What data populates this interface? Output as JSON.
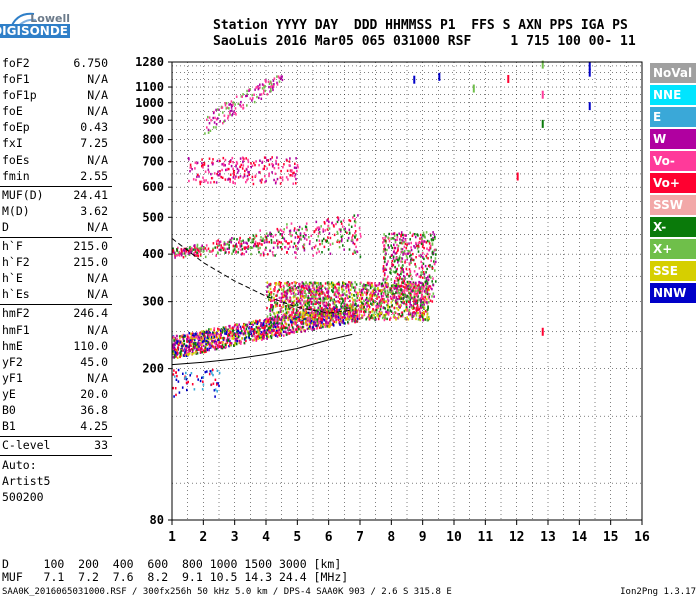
{
  "logo": {
    "line1": "Lowell",
    "line2": "DIGISONDE"
  },
  "header": {
    "line1": "Station YYYY DAY  DDD HHMMSS P1  FFS S AXN PPS IGA PS",
    "line2": "SaoLuis 2016 Mar05 065 031000 RSF     1 715 100 00- 11"
  },
  "params_group1": [
    {
      "k": "foF2",
      "v": "6.750"
    },
    {
      "k": "foF1",
      "v": "N/A"
    },
    {
      "k": "foF1p",
      "v": "N/A"
    },
    {
      "k": "foE",
      "v": "N/A"
    },
    {
      "k": "foEp",
      "v": "0.43"
    },
    {
      "k": "fxI",
      "v": "7.25"
    },
    {
      "k": "foEs",
      "v": "N/A"
    },
    {
      "k": "fmin",
      "v": "2.55"
    }
  ],
  "params_group2": [
    {
      "k": "MUF(D)",
      "v": "24.41"
    },
    {
      "k": "M(D)",
      "v": "3.62"
    },
    {
      "k": "D",
      "v": "N/A"
    }
  ],
  "params_group3": [
    {
      "k": "h`F",
      "v": "215.0"
    },
    {
      "k": "h`F2",
      "v": "215.0"
    },
    {
      "k": "h`E",
      "v": "N/A"
    },
    {
      "k": "h`Es",
      "v": "N/A"
    }
  ],
  "params_group4": [
    {
      "k": "hmF2",
      "v": "246.4"
    },
    {
      "k": "hmF1",
      "v": "N/A"
    },
    {
      "k": "hmE",
      "v": "110.0"
    },
    {
      "k": "yF2",
      "v": "45.0"
    },
    {
      "k": "yF1",
      "v": "N/A"
    },
    {
      "k": "yE",
      "v": "20.0"
    },
    {
      "k": "B0",
      "v": "36.8"
    },
    {
      "k": "B1",
      "v": "4.25"
    }
  ],
  "params_group5": [
    {
      "k": "C-level",
      "v": "33"
    }
  ],
  "autoscale": {
    "line1": "Auto:",
    "line2": "Artist5",
    "line3": "500200"
  },
  "legend": [
    {
      "label": "NoVal",
      "color": "#a0a0a0"
    },
    {
      "label": "NNE",
      "color": "#00e5ff"
    },
    {
      "label": "E",
      "color": "#3aa8d8"
    },
    {
      "label": "W",
      "color": "#b000a0"
    },
    {
      "label": "Vo-",
      "color": "#ff3a9a"
    },
    {
      "label": "Vo+",
      "color": "#ff0030"
    },
    {
      "label": "SSW",
      "color": "#f2a8a8"
    },
    {
      "label": "X-",
      "color": "#0a7a0a"
    },
    {
      "label": "X+",
      "color": "#6fbf4a"
    },
    {
      "label": "SSE",
      "color": "#d6cf00"
    },
    {
      "label": "NNW",
      "color": "#0000c8"
    }
  ],
  "chart_data": {
    "type": "scatter",
    "xlim": [
      1,
      16
    ],
    "ylim": [
      80,
      1280
    ],
    "x_ticks": [
      1,
      2,
      3,
      4,
      5,
      6,
      7,
      8,
      9,
      10,
      11,
      12,
      13,
      14,
      15,
      16
    ],
    "y_ticks": [
      80,
      200,
      300,
      400,
      500,
      600,
      700,
      800,
      900,
      1000,
      1100,
      1280
    ],
    "y_scale": "log",
    "grid": true,
    "profile_solid": [
      [
        1.0,
        205
      ],
      [
        2.0,
        208
      ],
      [
        3.0,
        212
      ],
      [
        4.0,
        218
      ],
      [
        5.0,
        226
      ],
      [
        6.0,
        238
      ],
      [
        6.75,
        246
      ]
    ],
    "profile_dashed": [
      [
        1.0,
        440
      ],
      [
        2.0,
        380
      ],
      [
        3.0,
        340
      ],
      [
        4.0,
        310
      ],
      [
        5.0,
        290
      ],
      [
        6.0,
        280
      ],
      [
        6.75,
        285
      ]
    ],
    "clusters": [
      {
        "name": "F2 trace",
        "x": [
          1.0,
          6.9
        ],
        "y": [
          200,
          290
        ],
        "colors": [
          "#ff0030",
          "#ff3a9a",
          "#b000a0",
          "#0000c8",
          "#0a7a0a",
          "#d6cf00"
        ],
        "n": 1400
      },
      {
        "name": "F2 spread",
        "x": [
          4.0,
          9.2
        ],
        "y": [
          270,
          340
        ],
        "colors": [
          "#ff0030",
          "#ff3a9a",
          "#b000a0",
          "#0a7a0a",
          "#6fbf4a",
          "#d6cf00"
        ],
        "n": 1500
      },
      {
        "name": "spread columns",
        "x": [
          7.7,
          9.4
        ],
        "y": [
          300,
          460
        ],
        "colors": [
          "#ff0030",
          "#ff3a9a",
          "#b000a0",
          "#0a7a0a",
          "#6fbf4a"
        ],
        "n": 500
      },
      {
        "name": "2F trace",
        "x": [
          1.0,
          7.0
        ],
        "y": [
          390,
          600
        ],
        "colors": [
          "#b000a0",
          "#ff3a9a",
          "#ff0030",
          "#0a7a0a",
          "#6fbf4a"
        ],
        "n": 500
      },
      {
        "name": "3F trace",
        "x": [
          1.5,
          5.0
        ],
        "y": [
          580,
          760
        ],
        "colors": [
          "#b000a0",
          "#ff3a9a",
          "#ff0030"
        ],
        "n": 220
      },
      {
        "name": "4F trace",
        "x": [
          2.0,
          4.5
        ],
        "y": [
          820,
          1180
        ],
        "colors": [
          "#b000a0",
          "#ff3a9a",
          "#6fbf4a"
        ],
        "n": 140
      },
      {
        "name": "low echoes",
        "x": [
          1.0,
          2.5
        ],
        "y": [
          170,
          200
        ],
        "colors": [
          "#ff0030",
          "#0000c8",
          "#3aa8d8"
        ],
        "n": 60
      }
    ],
    "isolated": [
      {
        "x": 12.8,
        "y": 1260,
        "c": "#6fbf4a"
      },
      {
        "x": 12.8,
        "y": 880,
        "c": "#0a7a0a"
      },
      {
        "x": 12.8,
        "y": 250,
        "c": "#ff0030"
      },
      {
        "x": 12.0,
        "y": 640,
        "c": "#ff0030"
      },
      {
        "x": 12.8,
        "y": 1050,
        "c": "#ff3a9a"
      },
      {
        "x": 14.3,
        "y": 1250,
        "c": "#0000c8"
      },
      {
        "x": 14.3,
        "y": 1200,
        "c": "#0000c8"
      },
      {
        "x": 14.3,
        "y": 980,
        "c": "#0000c8"
      },
      {
        "x": 9.5,
        "y": 1170,
        "c": "#0000c8"
      },
      {
        "x": 8.7,
        "y": 1150,
        "c": "#0000c8"
      },
      {
        "x": 11.7,
        "y": 1155,
        "c": "#ff0030"
      },
      {
        "x": 10.6,
        "y": 1090,
        "c": "#6fbf4a"
      }
    ]
  },
  "mufd_table": {
    "line1": "D     100  200  400  600  800 1000 1500 3000 [km]",
    "line2": "MUF   7.1  7.2  7.6  8.2  9.1 10.5 14.3 24.4 [MHz]"
  },
  "footer": "SAA0K_2016065031000.RSF / 300fx256h 50 kHz 5.0 km / DPS-4 SAA0K 903 / 2.6 S 315.8 E",
  "version": "Ion2Png 1.3.17"
}
